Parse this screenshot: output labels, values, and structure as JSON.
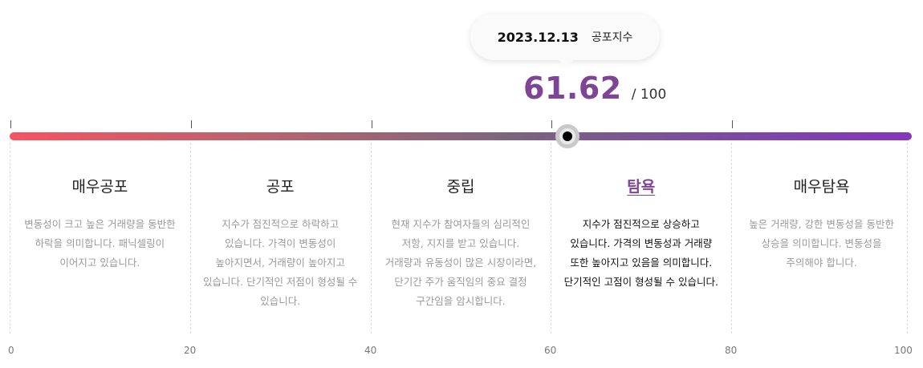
{
  "tooltip": {
    "date": "2023.12.13",
    "label": "공포지수"
  },
  "score": {
    "value": 61.62,
    "value_text": "61.62",
    "max_text": "/ 100"
  },
  "chart_data": {
    "type": "gauge",
    "value": 61.62,
    "range": [
      0,
      100
    ],
    "ticks": [
      0,
      20,
      40,
      60,
      80,
      100
    ],
    "tick_labels": [
      "0",
      "20",
      "40",
      "60",
      "80",
      "100"
    ],
    "gradient_colors": [
      "#f65461",
      "#8436bd"
    ],
    "accent_color": "#7e4495",
    "zones": [
      {
        "name": "매우공포",
        "from": 0,
        "to": 20,
        "desc": "변동성이 크고 높은 거래량을 동반한 하락을 의미합니다. 패닉셀링이 이어지고 있습니다.",
        "active": false
      },
      {
        "name": "공포",
        "from": 20,
        "to": 40,
        "desc": "지수가 점진적으로 하락하고 있습니다. 가격이 변동성이 높아지면서, 거래량이 높아지고 있습니다. 단기적인 저점이 형성될 수 있습니다.",
        "active": false
      },
      {
        "name": "중립",
        "from": 40,
        "to": 60,
        "desc": "현재 지수가 참여자들의 심리적인 저항, 지지를 받고 있습니다. 거래량과 유동성이 많은 시장이라면, 단기간 주가 움직임의 중요 결정 구간임을 암시합니다.",
        "active": false
      },
      {
        "name": "탐욕",
        "from": 60,
        "to": 80,
        "desc": "지수가 점진적으로 상승하고 있습니다. 가격의 변동성과 거래량 또한 높아지고 있음을 의미합니다. 단기적인 고점이 형성될 수 있습니다.",
        "active": true
      },
      {
        "name": "매우탐욕",
        "from": 80,
        "to": 100,
        "desc": "높은 거래량, 강한 변동성을 동반한 상승을 의미합니다. 변동성을 주의해야 합니다.",
        "active": false
      }
    ]
  }
}
